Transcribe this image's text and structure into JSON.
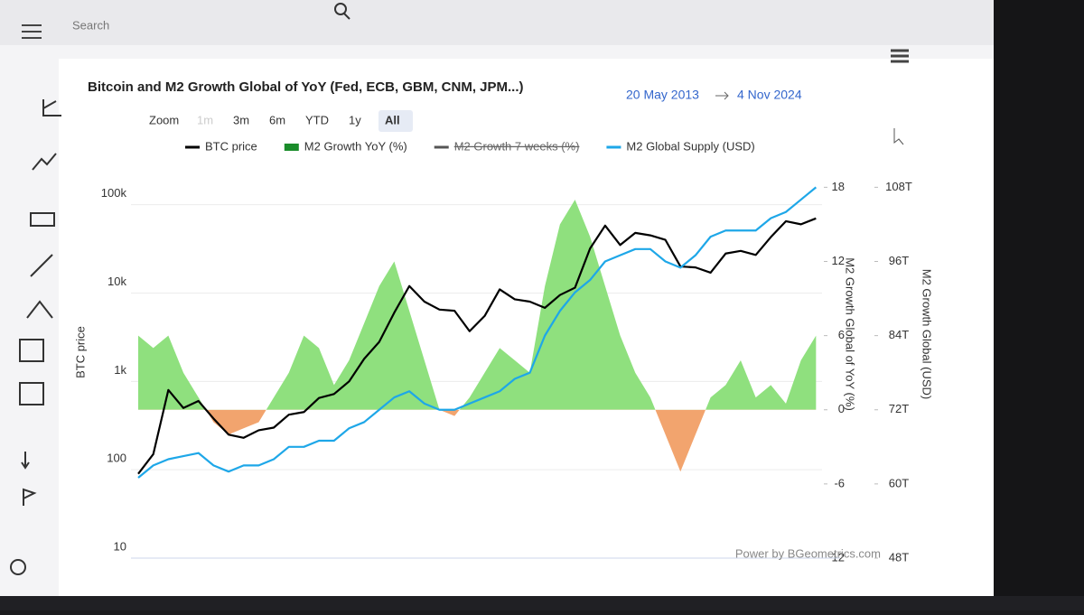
{
  "search_placeholder": "Search",
  "chart_data": {
    "type": "line",
    "title": "Bitcoin and M2 Growth Global of YoY (Fed, ECB, GBM, CNM, JPM...)",
    "date_from": "20 May 2013",
    "date_to": "4 Nov 2024",
    "zoom_label": "Zoom",
    "zoom_buttons": [
      "1m",
      "3m",
      "6m",
      "YTD",
      "1y",
      "All"
    ],
    "zoom_selected": 5,
    "credits": "Power by BGeometrics.com",
    "ylabel": "BTC price",
    "y2label": "M2 Growth Global of YoY (%)",
    "y3label": "M2 Growth Global (USD)",
    "grid": true,
    "ylog": true,
    "x": [
      2013.5,
      2013.75,
      2014.0,
      2014.25,
      2014.5,
      2014.75,
      2015.0,
      2015.25,
      2015.5,
      2015.75,
      2016.0,
      2016.25,
      2016.5,
      2016.75,
      2017.0,
      2017.25,
      2017.5,
      2017.75,
      2018.0,
      2018.25,
      2018.5,
      2018.75,
      2019.0,
      2019.25,
      2019.5,
      2019.75,
      2020.0,
      2020.25,
      2020.5,
      2020.75,
      2021.0,
      2021.25,
      2021.5,
      2021.75,
      2022.0,
      2022.25,
      2022.5,
      2022.75,
      2023.0,
      2023.25,
      2023.5,
      2023.75,
      2024.0,
      2024.25,
      2024.5,
      2024.75
    ],
    "xlim": [
      2013.38,
      2024.85
    ],
    "ylim": [
      10,
      300000
    ],
    "yticks": [
      10,
      100,
      {
        "value": 1000,
        "label": "1k"
      },
      {
        "value": 10000,
        "label": "10k"
      },
      {
        "value": 100000,
        "label": "100k"
      }
    ],
    "y2lim": [
      -12,
      20
    ],
    "y2ticks": [
      -12,
      -6,
      0,
      6,
      12,
      18
    ],
    "y3lim": [
      48,
      112
    ],
    "y3ticks": [
      {
        "value": 48,
        "label": "48T"
      },
      {
        "value": 60,
        "label": "60T"
      },
      {
        "value": 72,
        "label": "72T"
      },
      {
        "value": 84,
        "label": "84T"
      },
      {
        "value": 96,
        "label": "96T"
      },
      {
        "value": 108,
        "label": "108T"
      }
    ],
    "series": [
      {
        "name": "BTC price",
        "color": "#000000",
        "axis": "y",
        "kind": "line",
        "values": [
          90,
          150,
          800,
          500,
          600,
          380,
          250,
          230,
          280,
          300,
          420,
          450,
          650,
          720,
          1000,
          1800,
          2800,
          6000,
          12000,
          8000,
          6500,
          6300,
          3700,
          5500,
          11000,
          8500,
          8000,
          6800,
          9500,
          11500,
          32000,
          58000,
          35000,
          48000,
          45000,
          40000,
          20000,
          19500,
          17000,
          28000,
          30000,
          27000,
          43000,
          65000,
          60000,
          70000
        ]
      },
      {
        "name": "M2 Growth YoY (%)",
        "color": "#8fe07e",
        "negative_color": "#f2a46e",
        "axis": "y2",
        "kind": "area",
        "values": [
          6,
          5,
          6,
          3,
          1,
          -1,
          -2,
          -1.5,
          -1,
          1,
          3,
          6,
          5,
          2,
          4,
          7,
          10,
          12,
          8,
          4,
          0,
          -0.5,
          1,
          3,
          5,
          4,
          3,
          10,
          15,
          17,
          14,
          10,
          6,
          3,
          1,
          -2,
          -5,
          -2,
          1,
          2,
          4,
          1,
          2,
          0.5,
          4,
          6
        ]
      },
      {
        "name": "M2 Growth 7 weeks (%)",
        "color": "#555555",
        "visible": false
      },
      {
        "name": "M2 Global Supply (USD)",
        "color": "#1ea7e8",
        "axis": "y3",
        "kind": "line",
        "values": [
          61,
          63,
          64,
          64.5,
          65,
          63,
          62,
          63,
          63,
          64,
          66,
          66,
          67,
          67,
          69,
          70,
          72,
          74,
          75,
          73,
          72,
          72,
          73,
          74,
          75,
          77,
          78,
          84,
          88,
          91,
          93,
          96,
          97,
          98,
          98,
          96,
          95,
          97,
          100,
          101,
          101,
          101,
          103,
          104,
          106,
          108
        ]
      }
    ]
  }
}
